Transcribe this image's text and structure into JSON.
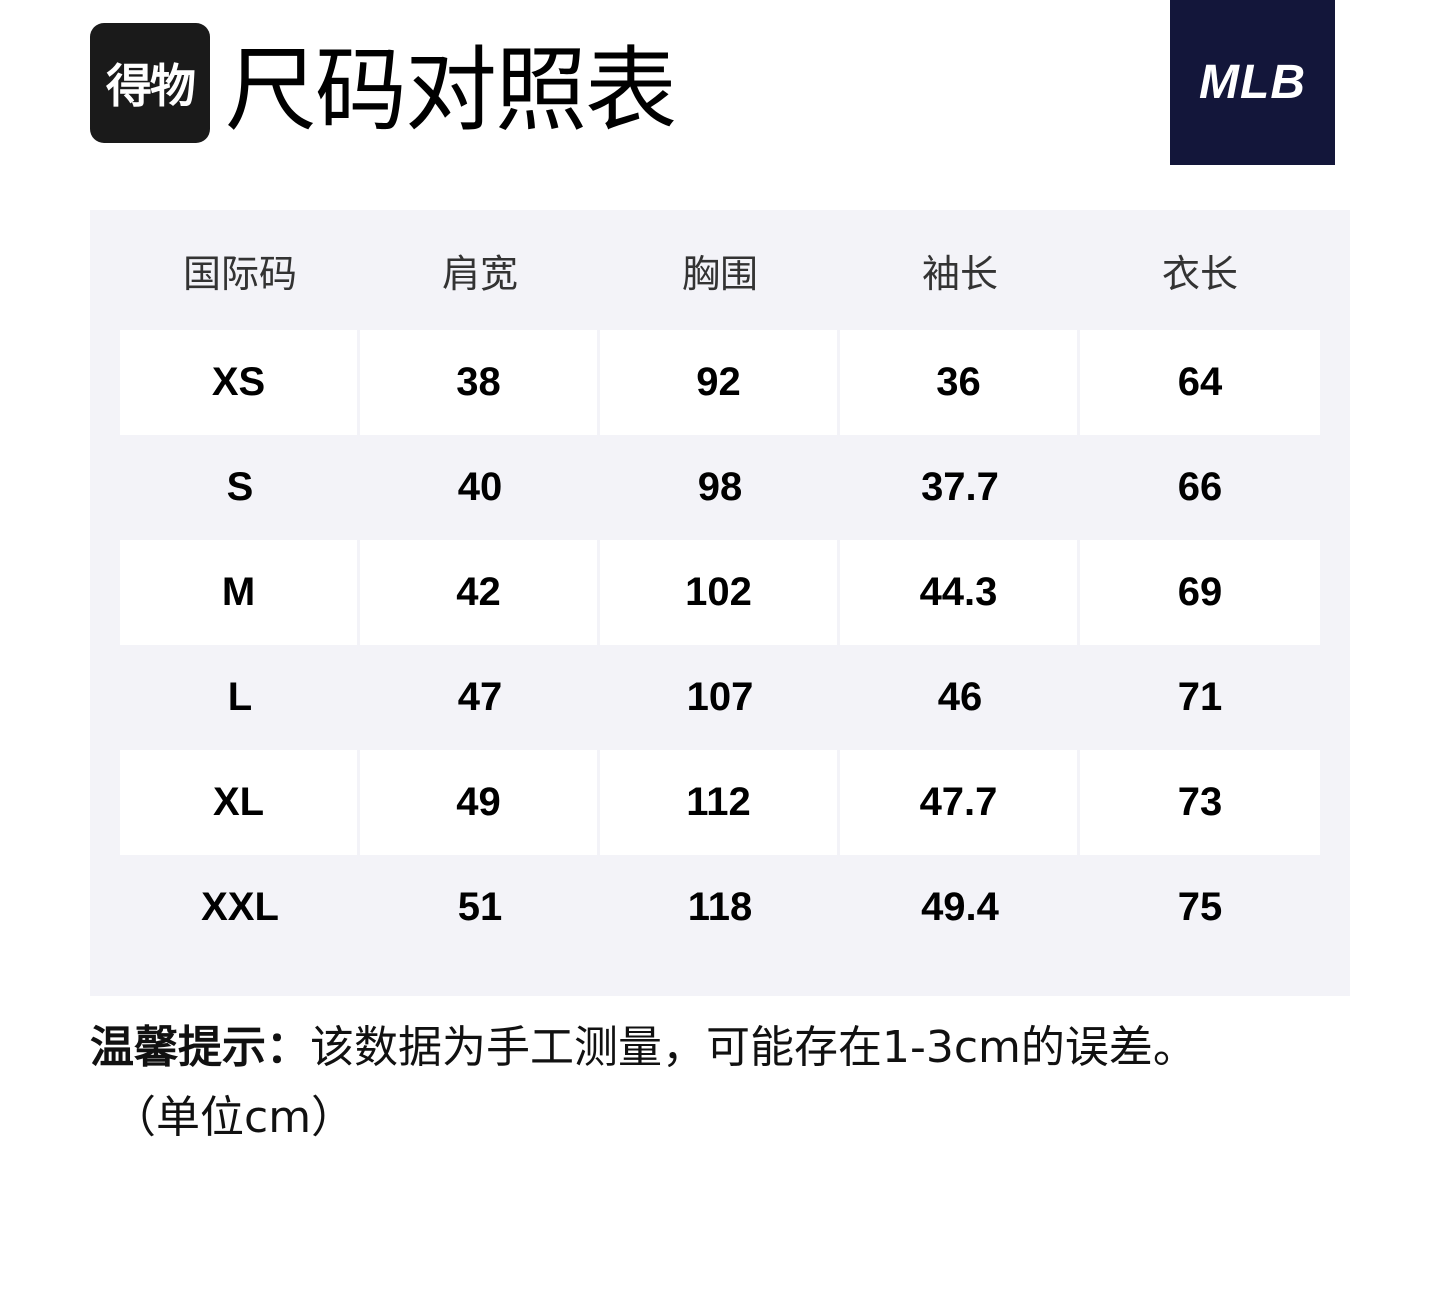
{
  "app_logo_text": "得物",
  "title": "尺码对照表",
  "brand_logo_text": "MLB",
  "table": {
    "headers": [
      "国际码",
      "肩宽",
      "胸围",
      "袖长",
      "衣长"
    ],
    "rows": [
      [
        "XS",
        "38",
        "92",
        "36",
        "64"
      ],
      [
        "S",
        "40",
        "98",
        "37.7",
        "66"
      ],
      [
        "M",
        "42",
        "102",
        "44.3",
        "69"
      ],
      [
        "L",
        "47",
        "107",
        "46",
        "71"
      ],
      [
        "XL",
        "49",
        "112",
        "47.7",
        "73"
      ],
      [
        "XXL",
        "51",
        "118",
        "49.4",
        "75"
      ]
    ]
  },
  "note": {
    "label": "温馨提示：",
    "text": "该数据为手工测量，可能存在1-3cm的误差。",
    "unit": "（单位cm）"
  },
  "colors": {
    "brand_bg": "#13163a",
    "app_logo_bg": "#1a1a1a",
    "table_bg": "#f3f3f8"
  }
}
